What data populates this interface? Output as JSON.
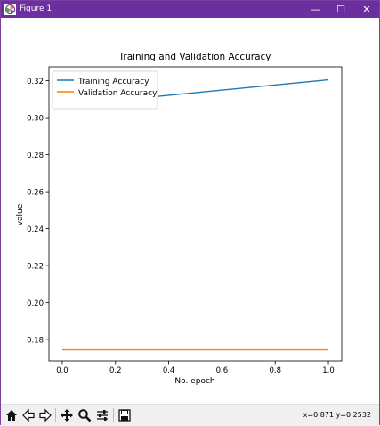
{
  "window": {
    "title": "Figure 1",
    "controls": {
      "minimize": "—",
      "maximize": "☐",
      "close": "✕"
    },
    "titlebar_color": "#6b2fa0"
  },
  "toolbar": {
    "buttons": [
      "home-icon",
      "back-arrow-icon",
      "forward-arrow-icon",
      "pan-icon",
      "zoom-icon",
      "configure-subplots-icon",
      "save-icon"
    ],
    "coordinates": "x=0.871 y=0.2532"
  },
  "chart_data": {
    "type": "line",
    "title": "Training and Validation Accuracy",
    "xlabel": "No. epoch",
    "ylabel": "value",
    "xlim": [
      -0.05,
      1.05
    ],
    "ylim": [
      0.1685,
      0.3275
    ],
    "xticks": [
      0.0,
      0.2,
      0.4,
      0.6,
      0.8,
      1.0
    ],
    "xtick_labels": [
      "0.0",
      "0.2",
      "0.4",
      "0.6",
      "0.8",
      "1.0"
    ],
    "yticks": [
      0.18,
      0.2,
      0.22,
      0.24,
      0.26,
      0.28,
      0.3,
      0.32
    ],
    "ytick_labels": [
      "0.18",
      "0.20",
      "0.22",
      "0.24",
      "0.26",
      "0.28",
      "0.30",
      "0.32"
    ],
    "grid": false,
    "legend": "upper-left",
    "series": [
      {
        "name": "Training Accuracy",
        "color": "#1f77b4",
        "x": [
          0,
          1
        ],
        "y": [
          0.3065,
          0.3205
        ]
      },
      {
        "name": "Validation Accuracy",
        "color": "#ff7f0e",
        "x": [
          0,
          1
        ],
        "y": [
          0.1745,
          0.1745
        ]
      }
    ]
  }
}
